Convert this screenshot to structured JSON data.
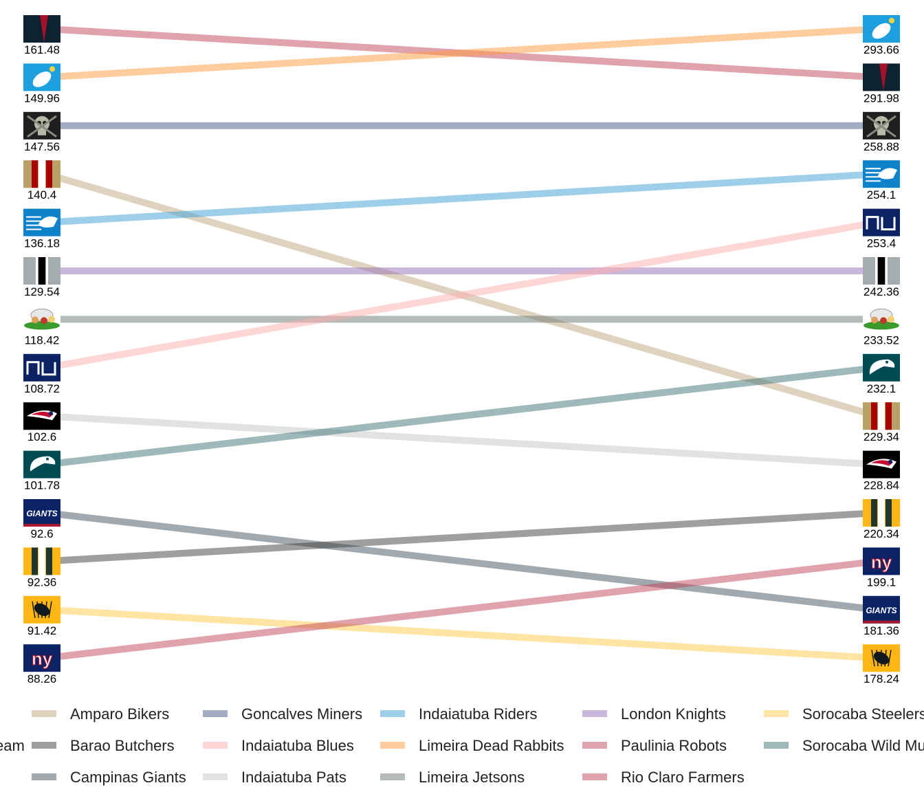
{
  "chart_data": {
    "type": "slope",
    "title": "",
    "xlabel": "",
    "ylabel": "",
    "legend_title": "Team",
    "legend_position": "bottom",
    "grid": false,
    "left_label": "",
    "right_label": "",
    "series": [
      {
        "name": "Paulinia Robots",
        "left": 161.48,
        "right": 291.98,
        "left_rank": 1,
        "right_rank": 2,
        "color": "#c1465a",
        "logo": "robots"
      },
      {
        "name": "Limeira Dead Rabbits",
        "left": 149.96,
        "right": 293.66,
        "left_rank": 2,
        "right_rank": 1,
        "color": "#ff9a3c",
        "logo": "rabbit"
      },
      {
        "name": "Goncalves Miners",
        "left": 147.56,
        "right": 258.88,
        "left_rank": 3,
        "right_rank": 3,
        "color": "#4a5a8a",
        "logo": "skull"
      },
      {
        "name": "Amparo Bikers",
        "left": 140.4,
        "right": 229.34,
        "left_rank": 4,
        "right_rank": 9,
        "color": "#bfa881",
        "logo": "stripes-red"
      },
      {
        "name": "Indaiatuba Riders",
        "left": 136.18,
        "right": 254.1,
        "left_rank": 5,
        "right_rank": 4,
        "color": "#3ba0d8",
        "logo": "panther"
      },
      {
        "name": "London Knights",
        "left": 129.54,
        "right": 242.36,
        "left_rank": 6,
        "right_rank": 6,
        "color": "#9670b8",
        "logo": "stripe-black"
      },
      {
        "name": "Limeira Jetsons",
        "left": 118.42,
        "right": 233.52,
        "left_rank": 7,
        "right_rank": 7,
        "color": "#6b7770",
        "logo": "cartoon"
      },
      {
        "name": "Indaiatuba Blues",
        "left": 108.72,
        "right": 253.4,
        "left_rank": 8,
        "right_rank": 5,
        "color": "#ffadad",
        "logo": "nu"
      },
      {
        "name": "Indaiatuba Pats",
        "left": 102.6,
        "right": 228.84,
        "left_rank": 9,
        "right_rank": 10,
        "color": "#c4c8c8",
        "logo": "pats"
      },
      {
        "name": "Sorocaba Wild Mustangs",
        "left": 101.78,
        "right": 232.1,
        "left_rank": 10,
        "right_rank": 8,
        "color": "#3f7478",
        "logo": "eagle"
      },
      {
        "name": "Campinas Giants",
        "left": 92.6,
        "right": 181.36,
        "left_rank": 11,
        "right_rank": 13,
        "color": "#435460",
        "logo": "giants"
      },
      {
        "name": "Barao Butchers",
        "left": 92.36,
        "right": 220.34,
        "left_rank": 12,
        "right_rank": 11,
        "color": "#404040",
        "logo": "stripes-green"
      },
      {
        "name": "Sorocaba Steelers",
        "left": 91.42,
        "right": 178.24,
        "left_rank": 13,
        "right_rank": 14,
        "color": "#ffc94a",
        "logo": "steelers"
      },
      {
        "name": "Rio Claro Farmers",
        "left": 88.26,
        "right": 199.1,
        "left_rank": 14,
        "right_rank": 12,
        "color": "#c1465a",
        "logo": "ny"
      }
    ],
    "legend_columns": [
      [
        "Amparo Bikers",
        "Barao Butchers",
        "Campinas Giants"
      ],
      [
        "Goncalves Miners",
        "Indaiatuba Blues",
        "Indaiatuba Pats"
      ],
      [
        "Indaiatuba Riders",
        "Limeira Dead Rabbits",
        "Limeira Jetsons"
      ],
      [
        "London Knights",
        "Paulinia Robots",
        "Rio Claro Farmers"
      ],
      [
        "Sorocaba Steelers",
        "Sorocaba Wild Mustangs"
      ]
    ]
  }
}
